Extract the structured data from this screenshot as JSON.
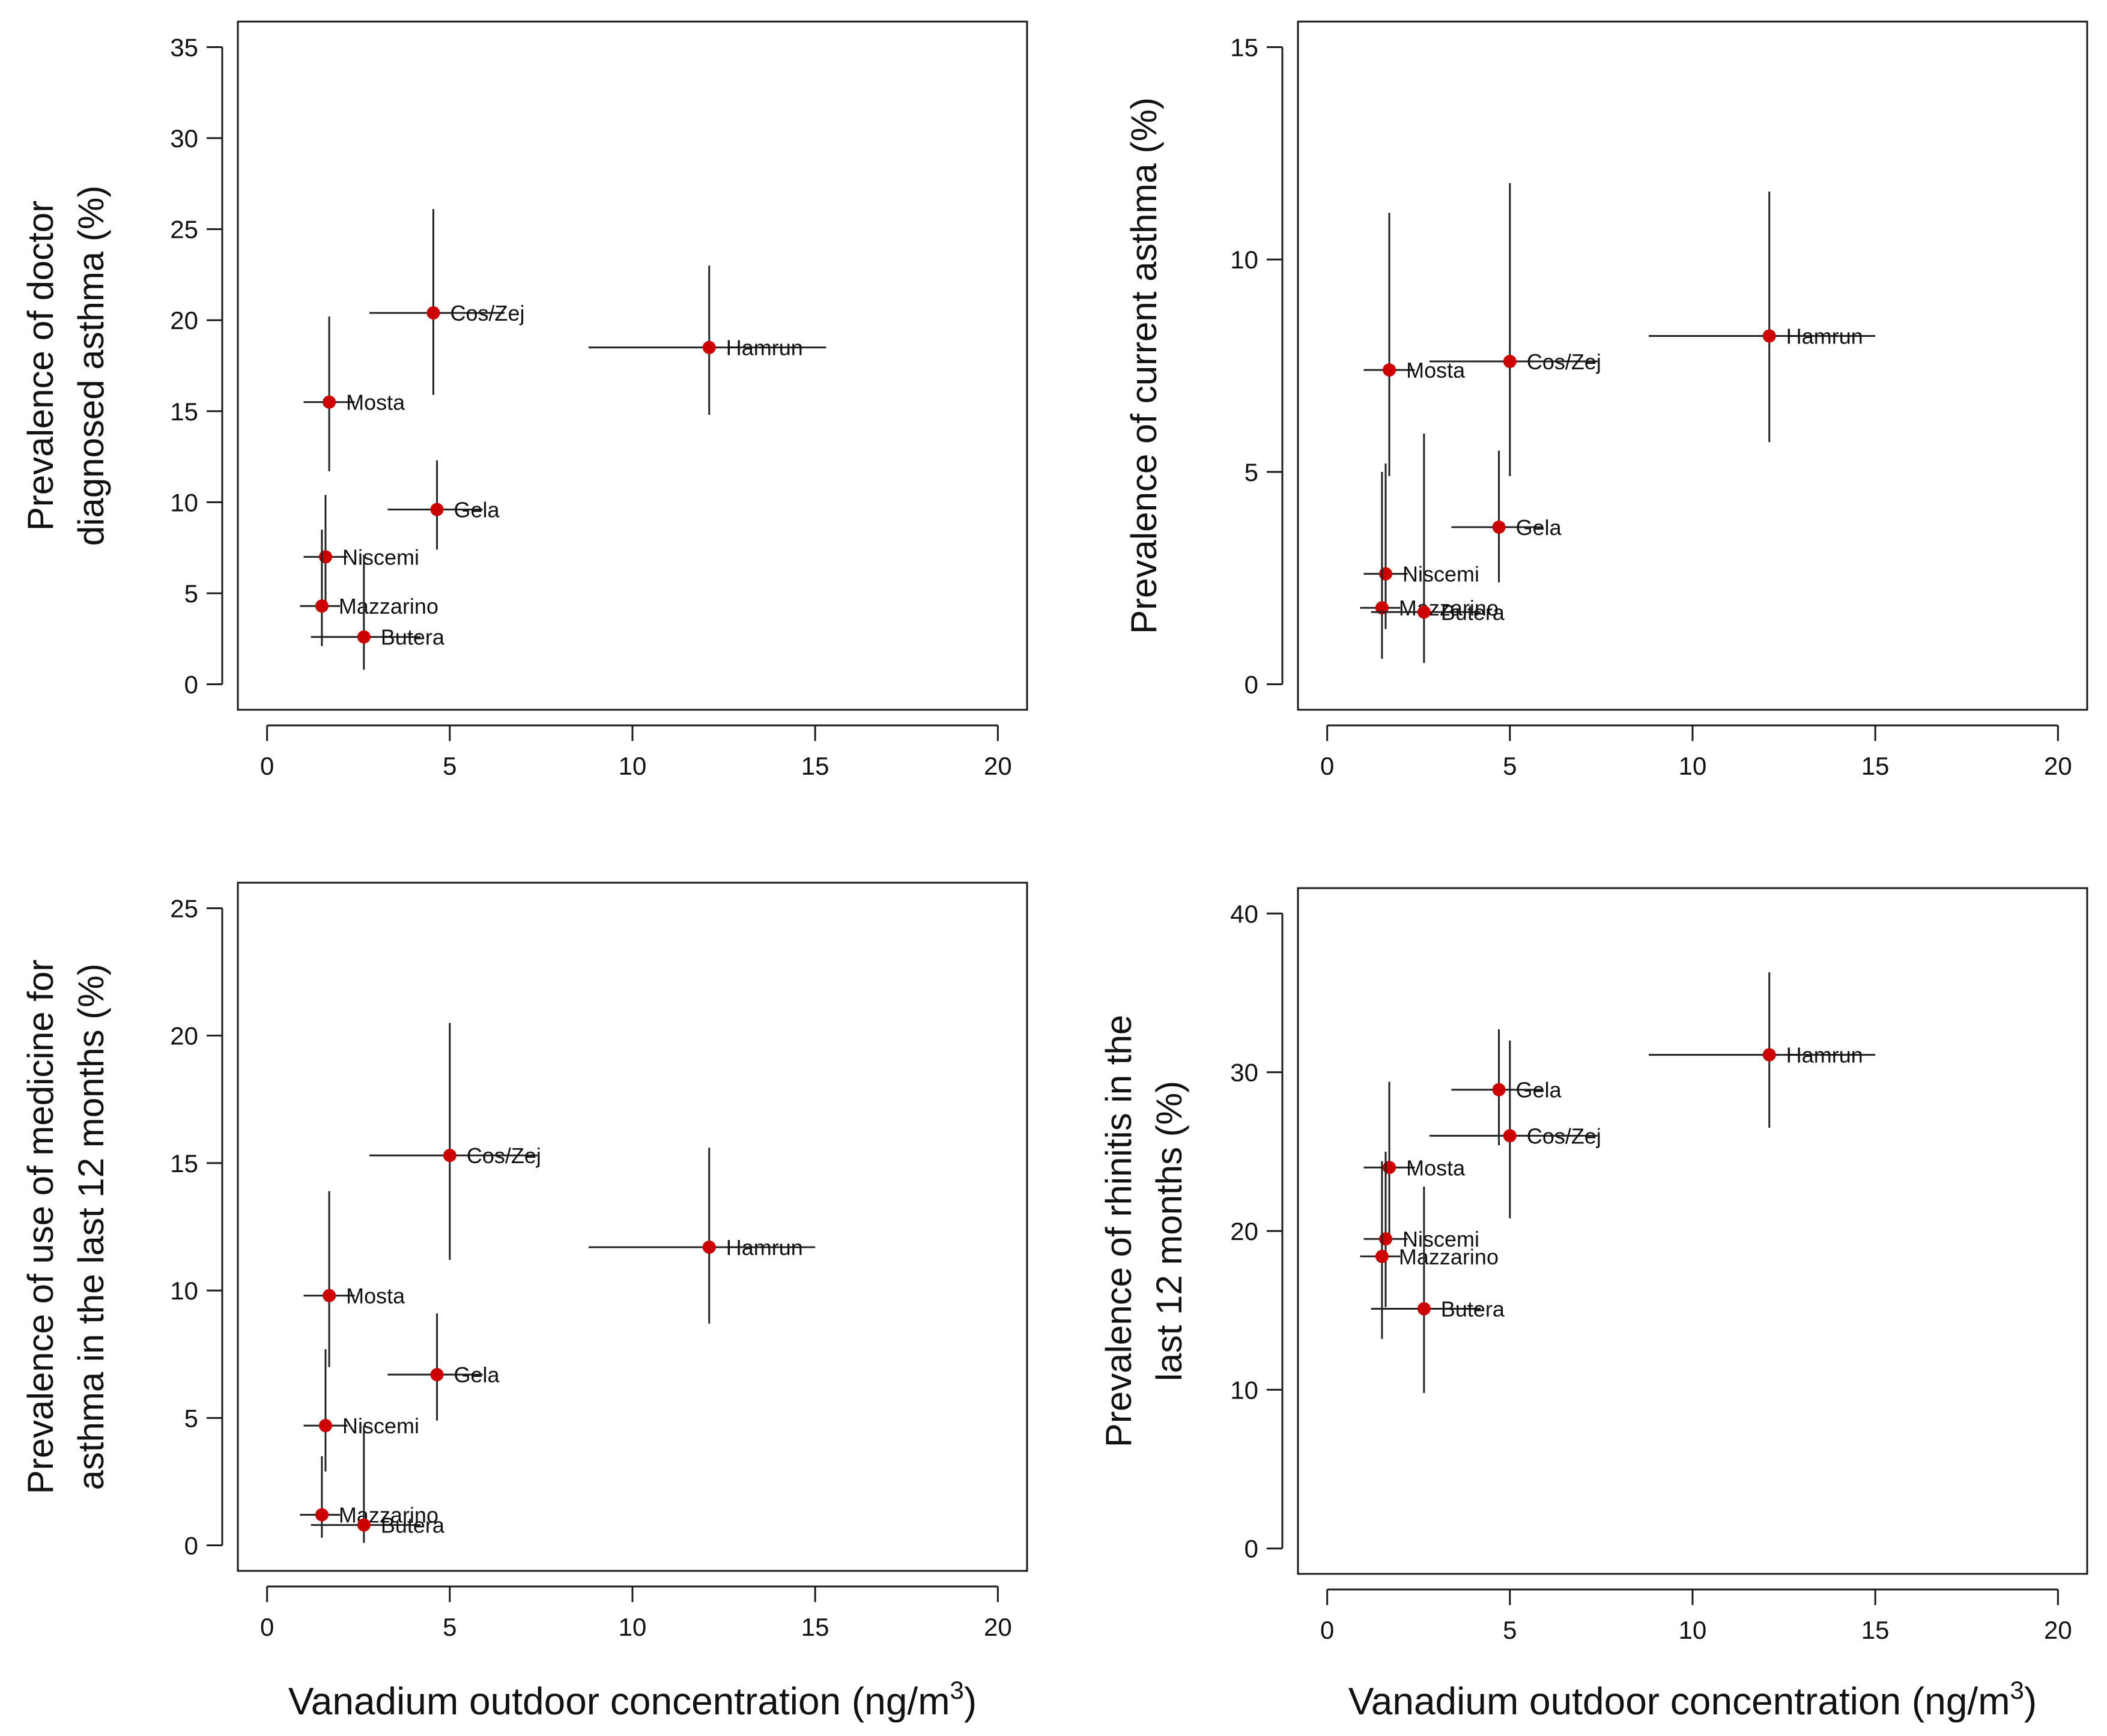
{
  "colors": {
    "point": "#cc0000",
    "errorbar": "#222222"
  },
  "chart_data": [
    {
      "id": "doctor",
      "type": "scatter",
      "ylabel_lines": [
        "Prevalence of doctor",
        "diagnosed asthma (%)"
      ],
      "xlabel": "",
      "xlim": [
        0,
        20
      ],
      "ylim": [
        0,
        35
      ],
      "xticks": [
        0,
        5,
        10,
        15,
        20
      ],
      "yticks": [
        0,
        5,
        10,
        15,
        20,
        25,
        30,
        35
      ],
      "points": [
        {
          "label": "Cos/Zej",
          "x": 4.55,
          "y": 20.4,
          "xerr": [
            2.8,
            6.5
          ],
          "yerr": [
            15.9,
            26.1
          ]
        },
        {
          "label": "Hamrun",
          "x": 12.1,
          "y": 18.5,
          "xerr": [
            8.8,
            15.3
          ],
          "yerr": [
            14.8,
            23.0
          ]
        },
        {
          "label": "Mosta",
          "x": 1.7,
          "y": 15.5,
          "xerr": [
            1.0,
            2.4
          ],
          "yerr": [
            11.7,
            20.2
          ]
        },
        {
          "label": "Gela",
          "x": 4.65,
          "y": 9.6,
          "xerr": [
            3.3,
            5.9
          ],
          "yerr": [
            7.4,
            12.3
          ]
        },
        {
          "label": "Niscemi",
          "x": 1.6,
          "y": 7.0,
          "xerr": [
            1.0,
            2.2
          ],
          "yerr": [
            4.3,
            10.4
          ]
        },
        {
          "label": "Mazzarino",
          "x": 1.5,
          "y": 4.3,
          "xerr": [
            0.9,
            2.0
          ],
          "yerr": [
            2.1,
            8.5
          ]
        },
        {
          "label": "Butera",
          "x": 2.65,
          "y": 2.6,
          "xerr": [
            1.2,
            4.2
          ],
          "yerr": [
            0.8,
            7.1
          ]
        }
      ]
    },
    {
      "id": "current",
      "type": "scatter",
      "ylabel_lines": [
        "Prevalence of current asthma (%)"
      ],
      "xlabel": "",
      "xlim": [
        0,
        20
      ],
      "ylim": [
        0,
        15
      ],
      "xticks": [
        0,
        5,
        10,
        15,
        20
      ],
      "yticks": [
        0,
        5,
        10,
        15
      ],
      "points": [
        {
          "label": "Hamrun",
          "x": 12.1,
          "y": 8.2,
          "xerr": [
            8.8,
            15.0
          ],
          "yerr": [
            5.7,
            11.6
          ]
        },
        {
          "label": "Cos/Zej",
          "x": 5.0,
          "y": 7.6,
          "xerr": [
            2.8,
            7.4
          ],
          "yerr": [
            4.9,
            11.8
          ]
        },
        {
          "label": "Mosta",
          "x": 1.7,
          "y": 7.4,
          "xerr": [
            1.0,
            2.4
          ],
          "yerr": [
            4.9,
            11.1
          ]
        },
        {
          "label": "Gela",
          "x": 4.7,
          "y": 3.7,
          "xerr": [
            3.4,
            5.9
          ],
          "yerr": [
            2.4,
            5.5
          ]
        },
        {
          "label": "Niscemi",
          "x": 1.6,
          "y": 2.6,
          "xerr": [
            1.0,
            2.2
          ],
          "yerr": [
            1.3,
            5.2
          ]
        },
        {
          "label": "Mazzarino",
          "x": 1.5,
          "y": 1.8,
          "xerr": [
            0.9,
            2.0
          ],
          "yerr": [
            0.6,
            5.0
          ]
        },
        {
          "label": "Butera",
          "x": 2.65,
          "y": 1.7,
          "xerr": [
            1.2,
            4.2
          ],
          "yerr": [
            0.5,
            5.9
          ]
        }
      ]
    },
    {
      "id": "medicine",
      "type": "scatter",
      "ylabel_lines": [
        "Prevalence of use of medicine for",
        "asthma in the last 12 months (%)"
      ],
      "xlabel": "Vanadium outdoor concentration (ng/m",
      "xlabel_sup": "3",
      "xlabel_close": ")",
      "xlim": [
        0,
        20
      ],
      "ylim": [
        0,
        25
      ],
      "xticks": [
        0,
        5,
        10,
        15,
        20
      ],
      "yticks": [
        0,
        5,
        10,
        15,
        20,
        25
      ],
      "points": [
        {
          "label": "Cos/Zej",
          "x": 5.0,
          "y": 15.3,
          "xerr": [
            2.8,
            7.4
          ],
          "yerr": [
            11.2,
            20.5
          ]
        },
        {
          "label": "Hamrun",
          "x": 12.1,
          "y": 11.7,
          "xerr": [
            8.8,
            15.0
          ],
          "yerr": [
            8.7,
            15.6
          ]
        },
        {
          "label": "Mosta",
          "x": 1.7,
          "y": 9.8,
          "xerr": [
            1.0,
            2.4
          ],
          "yerr": [
            7.0,
            13.9
          ]
        },
        {
          "label": "Gela",
          "x": 4.65,
          "y": 6.7,
          "xerr": [
            3.3,
            5.9
          ],
          "yerr": [
            4.9,
            9.1
          ]
        },
        {
          "label": "Niscemi",
          "x": 1.6,
          "y": 4.7,
          "xerr": [
            1.0,
            2.2
          ],
          "yerr": [
            2.9,
            7.7
          ]
        },
        {
          "label": "Mazzarino",
          "x": 1.5,
          "y": 1.2,
          "xerr": [
            0.9,
            2.0
          ],
          "yerr": [
            0.3,
            3.5
          ]
        },
        {
          "label": "Butera",
          "x": 2.65,
          "y": 0.8,
          "xerr": [
            1.2,
            4.2
          ],
          "yerr": [
            0.1,
            4.7
          ]
        }
      ]
    },
    {
      "id": "rhinitis",
      "type": "scatter",
      "ylabel_lines": [
        "Prevalence of rhinitis in the",
        "last 12 months (%)"
      ],
      "xlabel": "Vanadium outdoor concentration (ng/m",
      "xlabel_sup": "3",
      "xlabel_close": ")",
      "xlim": [
        0,
        20
      ],
      "ylim": [
        0,
        40
      ],
      "xticks": [
        0,
        5,
        10,
        15,
        20
      ],
      "yticks": [
        0,
        10,
        20,
        30,
        40
      ],
      "points": [
        {
          "label": "Hamrun",
          "x": 12.1,
          "y": 31.1,
          "xerr": [
            8.8,
            15.0
          ],
          "yerr": [
            26.5,
            36.3
          ]
        },
        {
          "label": "Gela",
          "x": 4.7,
          "y": 28.9,
          "xerr": [
            3.4,
            5.9
          ],
          "yerr": [
            25.4,
            32.7
          ]
        },
        {
          "label": "Cos/Zej",
          "x": 5.0,
          "y": 26.0,
          "xerr": [
            2.8,
            7.4
          ],
          "yerr": [
            20.8,
            32.0
          ]
        },
        {
          "label": "Mosta",
          "x": 1.7,
          "y": 24.0,
          "xerr": [
            1.0,
            2.4
          ],
          "yerr": [
            19.6,
            29.4
          ]
        },
        {
          "label": "Niscemi",
          "x": 1.6,
          "y": 19.5,
          "xerr": [
            1.0,
            2.2
          ],
          "yerr": [
            15.2,
            25.0
          ]
        },
        {
          "label": "Mazzarino",
          "x": 1.5,
          "y": 18.4,
          "xerr": [
            0.9,
            2.0
          ],
          "yerr": [
            13.2,
            24.4
          ]
        },
        {
          "label": "Butera",
          "x": 2.65,
          "y": 15.1,
          "xerr": [
            1.2,
            4.2
          ],
          "yerr": [
            9.8,
            22.8
          ]
        }
      ]
    }
  ]
}
